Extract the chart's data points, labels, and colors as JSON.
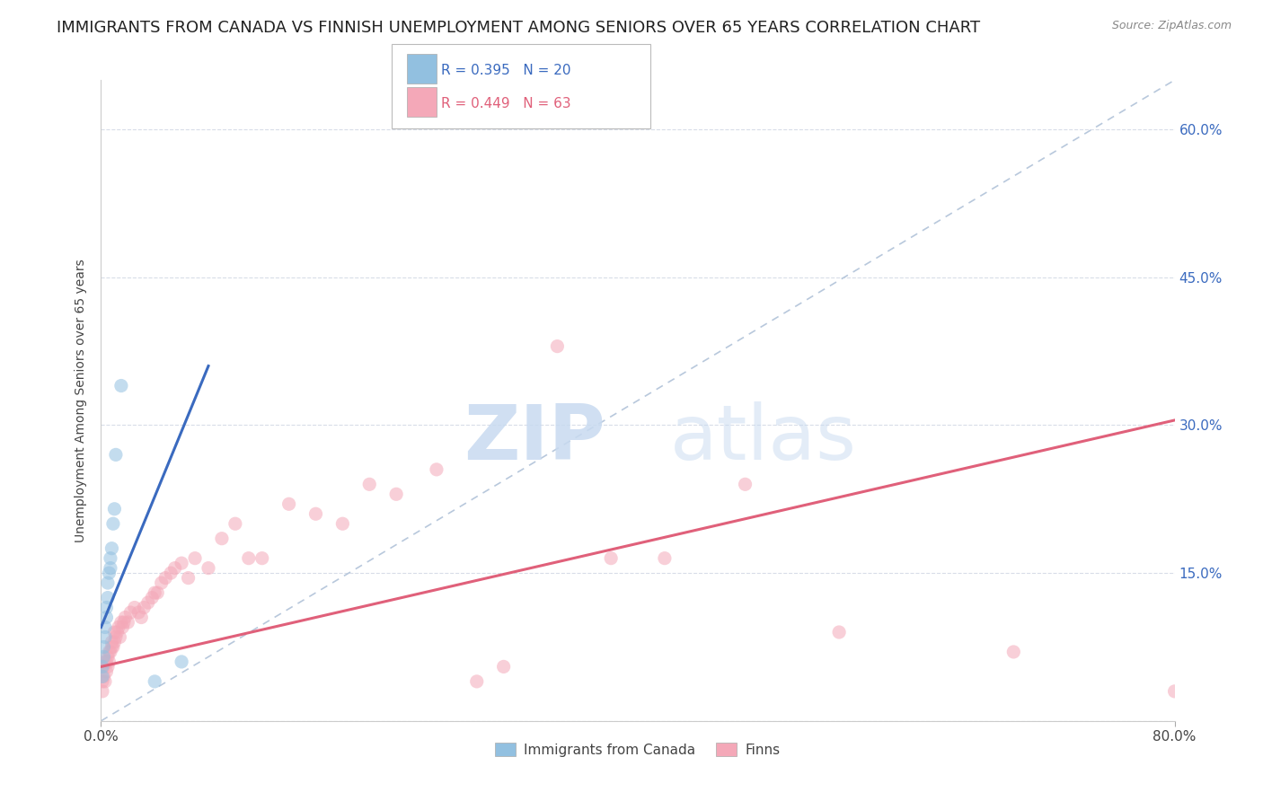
{
  "title": "IMMIGRANTS FROM CANADA VS FINNISH UNEMPLOYMENT AMONG SENIORS OVER 65 YEARS CORRELATION CHART",
  "source": "Source: ZipAtlas.com",
  "ylabel": "Unemployment Among Seniors over 65 years",
  "legend_blue_label": "Immigrants from Canada",
  "legend_pink_label": "Finns",
  "legend_blue_r": "R = 0.395",
  "legend_blue_n": "N = 20",
  "legend_pink_r": "R = 0.449",
  "legend_pink_n": "N = 63",
  "blue_scatter_x": [
    0.001,
    0.001,
    0.002,
    0.002,
    0.003,
    0.003,
    0.004,
    0.004,
    0.005,
    0.005,
    0.006,
    0.007,
    0.007,
    0.008,
    0.009,
    0.01,
    0.011,
    0.015,
    0.04,
    0.06
  ],
  "blue_scatter_y": [
    0.045,
    0.055,
    0.065,
    0.075,
    0.085,
    0.095,
    0.105,
    0.115,
    0.125,
    0.14,
    0.15,
    0.155,
    0.165,
    0.175,
    0.2,
    0.215,
    0.27,
    0.34,
    0.04,
    0.06
  ],
  "pink_scatter_x": [
    0.001,
    0.001,
    0.002,
    0.002,
    0.003,
    0.003,
    0.004,
    0.004,
    0.005,
    0.005,
    0.006,
    0.006,
    0.007,
    0.008,
    0.008,
    0.009,
    0.01,
    0.01,
    0.011,
    0.012,
    0.013,
    0.014,
    0.015,
    0.016,
    0.017,
    0.018,
    0.02,
    0.022,
    0.025,
    0.028,
    0.03,
    0.032,
    0.035,
    0.038,
    0.04,
    0.042,
    0.045,
    0.048,
    0.052,
    0.055,
    0.06,
    0.065,
    0.07,
    0.08,
    0.09,
    0.1,
    0.11,
    0.12,
    0.14,
    0.16,
    0.18,
    0.2,
    0.22,
    0.25,
    0.28,
    0.3,
    0.34,
    0.38,
    0.42,
    0.48,
    0.55,
    0.68,
    0.8
  ],
  "pink_scatter_y": [
    0.03,
    0.04,
    0.045,
    0.055,
    0.06,
    0.04,
    0.05,
    0.06,
    0.065,
    0.055,
    0.06,
    0.07,
    0.07,
    0.075,
    0.08,
    0.075,
    0.08,
    0.09,
    0.085,
    0.09,
    0.095,
    0.085,
    0.1,
    0.095,
    0.1,
    0.105,
    0.1,
    0.11,
    0.115,
    0.11,
    0.105,
    0.115,
    0.12,
    0.125,
    0.13,
    0.13,
    0.14,
    0.145,
    0.15,
    0.155,
    0.16,
    0.145,
    0.165,
    0.155,
    0.185,
    0.2,
    0.165,
    0.165,
    0.22,
    0.21,
    0.2,
    0.24,
    0.23,
    0.255,
    0.04,
    0.055,
    0.38,
    0.165,
    0.165,
    0.24,
    0.09,
    0.07,
    0.03
  ],
  "blue_line_x": [
    0.0,
    0.08
  ],
  "blue_line_y": [
    0.095,
    0.36
  ],
  "pink_line_x": [
    0.0,
    0.8
  ],
  "pink_line_y": [
    0.055,
    0.305
  ],
  "ref_line_x": [
    0.0,
    0.8
  ],
  "ref_line_y": [
    0.0,
    0.65
  ],
  "xlim": [
    0.0,
    0.8
  ],
  "ylim": [
    0.0,
    0.65
  ],
  "yticks": [
    0.0,
    0.15,
    0.3,
    0.45,
    0.6
  ],
  "ytick_labels": [
    "",
    "15.0%",
    "30.0%",
    "45.0%",
    "60.0%"
  ],
  "xticks": [
    0.0,
    0.8
  ],
  "xtick_labels": [
    "0.0%",
    "80.0%"
  ],
  "watermark_zip": "ZIP",
  "watermark_atlas": "atlas",
  "bg_color": "#ffffff",
  "blue_color": "#92c0e0",
  "pink_color": "#f4a8b8",
  "blue_line_color": "#3a6abf",
  "pink_line_color": "#e0607a",
  "ref_line_color": "#b8c8dc",
  "grid_color": "#d8dde8",
  "title_fontsize": 13,
  "label_fontsize": 10,
  "tick_fontsize": 11,
  "scatter_size": 120,
  "scatter_alpha": 0.55
}
